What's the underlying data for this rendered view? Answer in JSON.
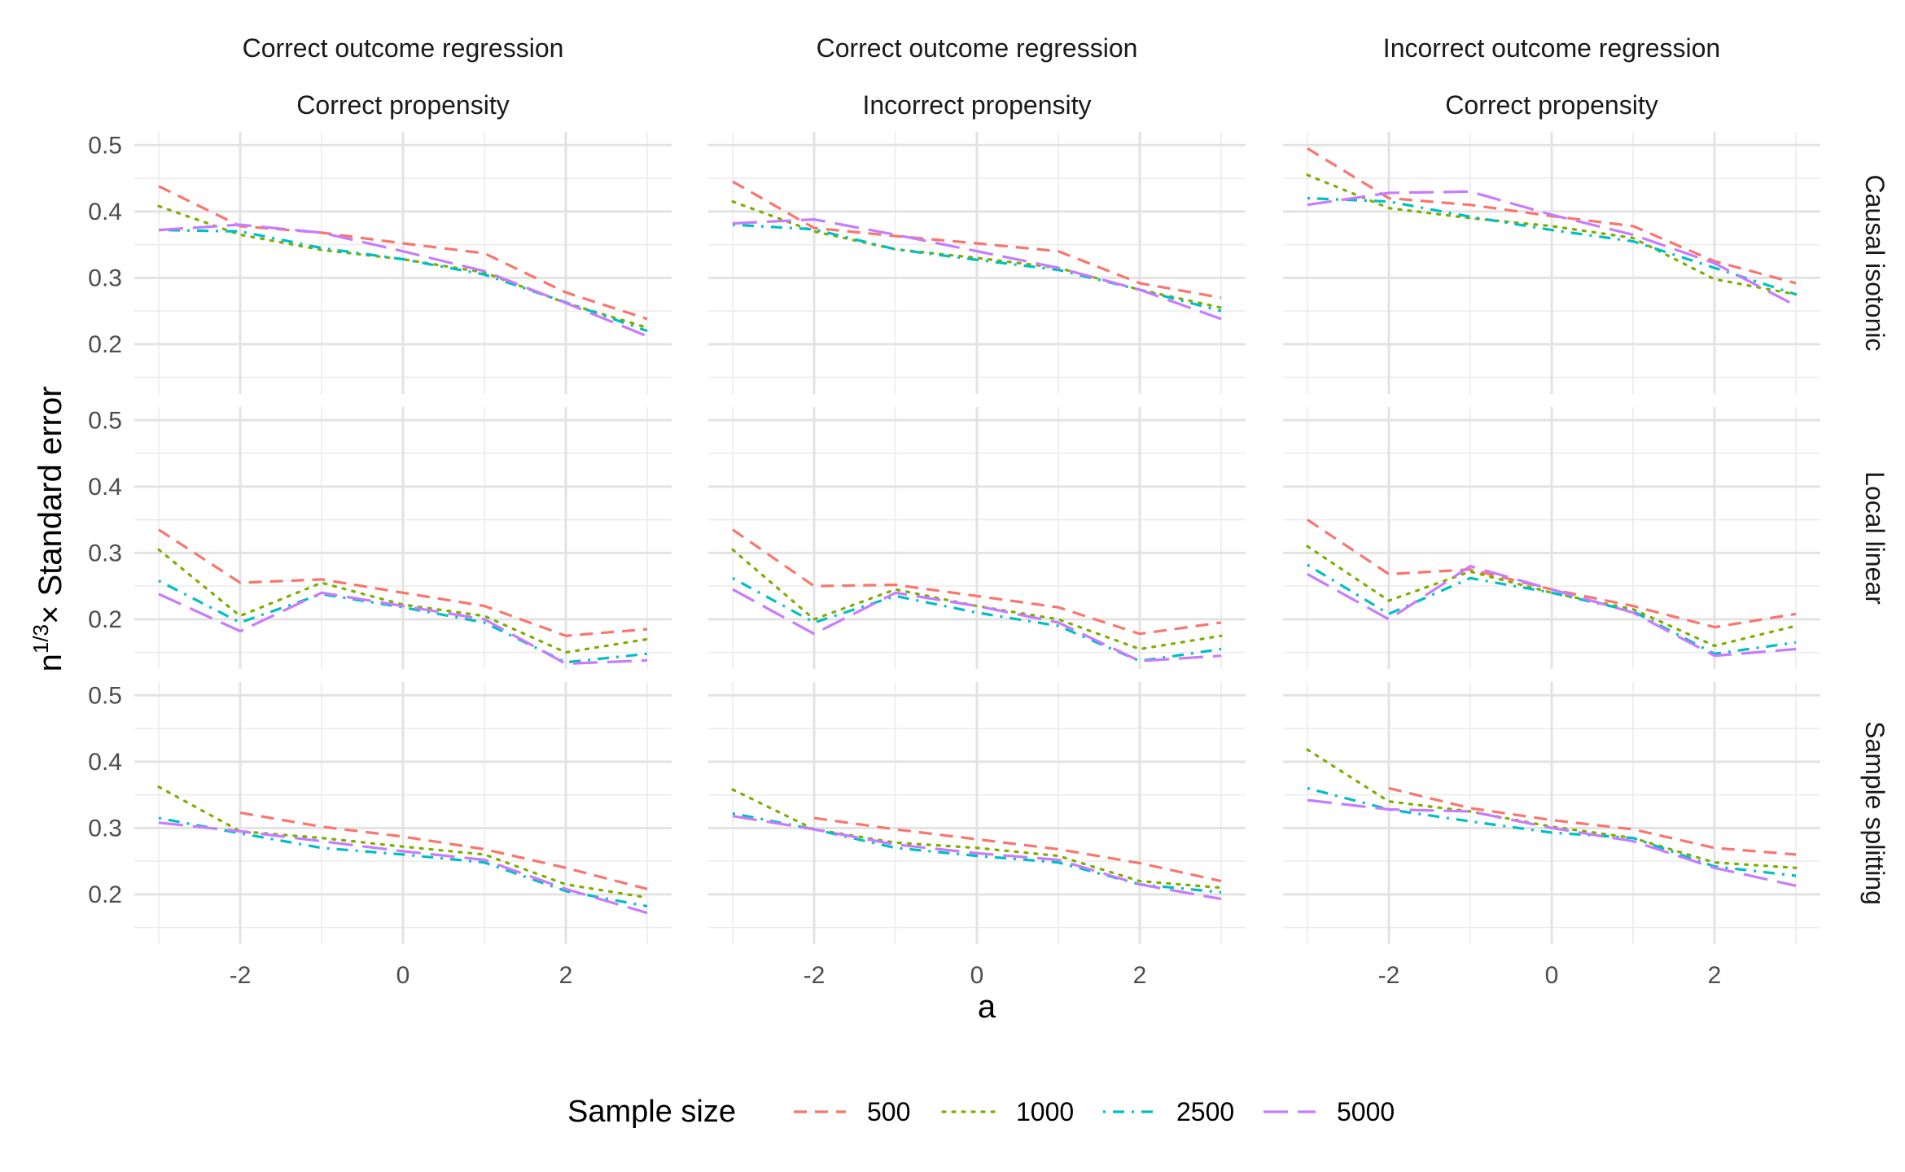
{
  "chart_data": {
    "type": "line",
    "title": "",
    "xlabel": "a",
    "ylabel_main": "n",
    "ylabel_sup": "1/3",
    "ylabel_rest": "× Standard error",
    "x": [
      -3,
      -2,
      -1,
      0,
      1,
      2,
      3
    ],
    "xlim": [
      -3.3,
      3.3
    ],
    "ylim": [
      0.125,
      0.52
    ],
    "x_ticks": [
      -2,
      0,
      2
    ],
    "x_tick_labels": [
      "-2",
      "0",
      "2"
    ],
    "y_ticks": [
      0.2,
      0.3,
      0.4,
      0.5
    ],
    "y_tick_labels": [
      "0.2",
      "0.3",
      "0.4",
      "0.5"
    ],
    "column_strips": [
      {
        "top": "Correct outcome regression",
        "bottom": "Correct propensity"
      },
      {
        "top": "Correct outcome regression",
        "bottom": "Incorrect propensity"
      },
      {
        "top": "Incorrect outcome regression",
        "bottom": "Correct propensity"
      }
    ],
    "row_strips": [
      "Causal isotonic",
      "Local linear",
      "Sample splitting"
    ],
    "legend": {
      "title": "Sample size",
      "position": "bottom",
      "entries": [
        {
          "label": "500",
          "color": "#F8766D",
          "dash": "dashed"
        },
        {
          "label": "1000",
          "color": "#7CAE00",
          "dash": "dotted"
        },
        {
          "label": "2500",
          "color": "#00BFC4",
          "dash": "dotdash"
        },
        {
          "label": "5000",
          "color": "#C77CFF",
          "dash": "longdash"
        }
      ]
    },
    "panels": [
      [
        {
          "series": [
            [
              0.438,
              0.378,
              0.368,
              0.352,
              0.337,
              0.278,
              0.238
            ],
            [
              0.408,
              0.365,
              0.342,
              0.328,
              0.308,
              0.262,
              0.225
            ],
            [
              0.372,
              0.37,
              0.345,
              0.328,
              0.305,
              0.263,
              0.22
            ],
            [
              0.372,
              0.38,
              0.368,
              0.34,
              0.31,
              0.262,
              0.212
            ]
          ]
        },
        {
          "series": [
            [
              0.445,
              0.375,
              0.363,
              0.352,
              0.34,
              0.292,
              0.27
            ],
            [
              0.415,
              0.37,
              0.343,
              0.33,
              0.315,
              0.282,
              0.255
            ],
            [
              0.38,
              0.373,
              0.343,
              0.327,
              0.312,
              0.282,
              0.25
            ],
            [
              0.382,
              0.388,
              0.365,
              0.34,
              0.315,
              0.282,
              0.238
            ]
          ]
        },
        {
          "series": [
            [
              0.495,
              0.42,
              0.41,
              0.393,
              0.378,
              0.325,
              0.292
            ],
            [
              0.455,
              0.405,
              0.39,
              0.378,
              0.36,
              0.298,
              0.275
            ],
            [
              0.42,
              0.415,
              0.392,
              0.372,
              0.355,
              0.315,
              0.275
            ],
            [
              0.41,
              0.428,
              0.43,
              0.395,
              0.365,
              0.322,
              0.258
            ]
          ]
        }
      ],
      [
        {
          "series": [
            [
              0.335,
              0.255,
              0.26,
              0.24,
              0.22,
              0.175,
              0.185
            ],
            [
              0.305,
              0.205,
              0.255,
              0.222,
              0.205,
              0.15,
              0.17
            ],
            [
              0.258,
              0.195,
              0.238,
              0.218,
              0.195,
              0.135,
              0.148
            ],
            [
              0.238,
              0.182,
              0.24,
              0.22,
              0.2,
              0.133,
              0.138
            ]
          ]
        },
        {
          "series": [
            [
              0.335,
              0.25,
              0.252,
              0.235,
              0.218,
              0.178,
              0.195
            ],
            [
              0.305,
              0.2,
              0.245,
              0.22,
              0.2,
              0.155,
              0.175
            ],
            [
              0.262,
              0.195,
              0.235,
              0.21,
              0.19,
              0.137,
              0.155
            ],
            [
              0.245,
              0.178,
              0.24,
              0.22,
              0.195,
              0.137,
              0.145
            ]
          ]
        },
        {
          "series": [
            [
              0.35,
              0.268,
              0.275,
              0.245,
              0.22,
              0.188,
              0.208
            ],
            [
              0.31,
              0.228,
              0.272,
              0.24,
              0.215,
              0.16,
              0.19
            ],
            [
              0.282,
              0.208,
              0.262,
              0.24,
              0.212,
              0.148,
              0.165
            ],
            [
              0.268,
              0.2,
              0.28,
              0.245,
              0.21,
              0.145,
              0.155
            ]
          ]
        }
      ],
      [
        {
          "series": [
            [
              null,
              0.323,
              0.302,
              0.287,
              0.268,
              0.24,
              0.208
            ],
            [
              0.362,
              0.295,
              0.285,
              0.272,
              0.26,
              0.215,
              0.195
            ],
            [
              0.315,
              0.292,
              0.27,
              0.26,
              0.248,
              0.205,
              0.182
            ],
            [
              0.308,
              0.295,
              0.28,
              0.265,
              0.252,
              0.208,
              0.172
            ]
          ]
        },
        {
          "series": [
            [
              null,
              0.315,
              0.298,
              0.283,
              0.268,
              0.247,
              0.22
            ],
            [
              0.358,
              0.298,
              0.278,
              0.27,
              0.258,
              0.22,
              0.21
            ],
            [
              0.322,
              0.298,
              0.27,
              0.258,
              0.248,
              0.215,
              0.203
            ],
            [
              0.318,
              0.298,
              0.275,
              0.262,
              0.252,
              0.215,
              0.193
            ]
          ]
        },
        {
          "series": [
            [
              null,
              0.36,
              0.33,
              0.312,
              0.298,
              0.27,
              0.26
            ],
            [
              0.418,
              0.34,
              0.325,
              0.302,
              0.285,
              0.248,
              0.24
            ],
            [
              0.36,
              0.328,
              0.31,
              0.293,
              0.285,
              0.242,
              0.228
            ],
            [
              0.342,
              0.328,
              0.325,
              0.3,
              0.28,
              0.24,
              0.213
            ]
          ]
        }
      ]
    ]
  }
}
